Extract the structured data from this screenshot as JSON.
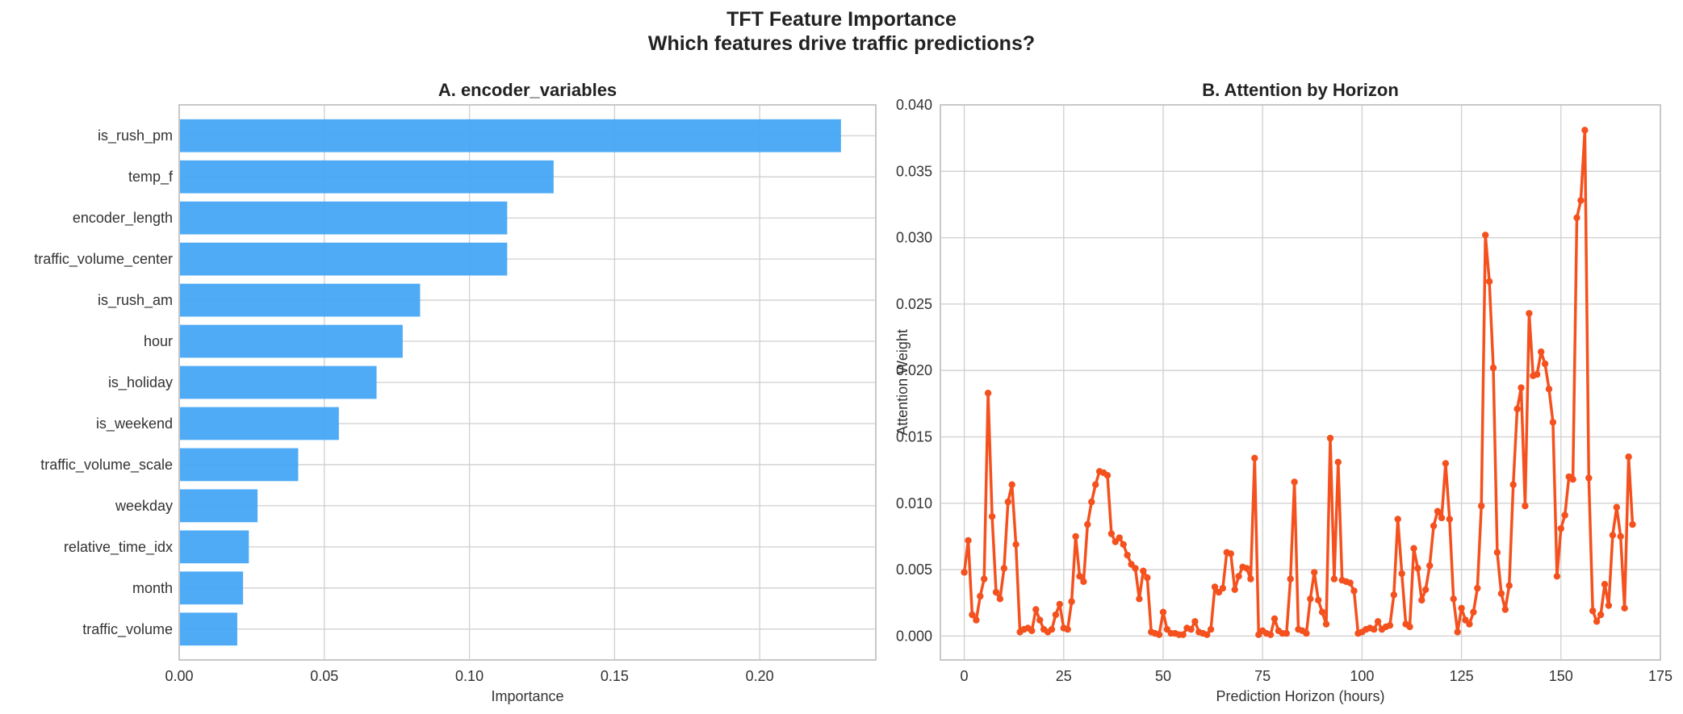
{
  "figure": {
    "title_line1": "TFT Feature Importance",
    "title_line2": "Which features drive traffic predictions?"
  },
  "colors": {
    "bar": "#42A5F5",
    "line": "#F4511E",
    "grid": "#cfcfcf",
    "spine": "#c8c8c8"
  },
  "chart_data": [
    {
      "type": "bar",
      "orientation": "horizontal",
      "title": "A. encoder_variables",
      "xlabel": "Importance",
      "ylabel": "",
      "xlim": [
        0,
        0.24
      ],
      "xticks": [
        "0.00",
        "0.05",
        "0.10",
        "0.15",
        "0.20"
      ],
      "grid": true,
      "categories": [
        "is_rush_pm",
        "temp_f",
        "encoder_length",
        "traffic_volume_center",
        "is_rush_am",
        "hour",
        "is_holiday",
        "is_weekend",
        "traffic_volume_scale",
        "weekday",
        "relative_time_idx",
        "month",
        "traffic_volume"
      ],
      "values": [
        0.228,
        0.129,
        0.113,
        0.113,
        0.083,
        0.077,
        0.068,
        0.055,
        0.041,
        0.027,
        0.024,
        0.022,
        0.02
      ]
    },
    {
      "type": "line",
      "title": "B. Attention by Horizon",
      "xlabel": "Prediction Horizon (hours)",
      "ylabel": "Attention Weight",
      "xlim": [
        -6,
        175
      ],
      "ylim": [
        -0.0018,
        0.04
      ],
      "xticks": [
        "0",
        "25",
        "50",
        "75",
        "100",
        "125",
        "150",
        "175"
      ],
      "yticks": [
        "0.000",
        "0.005",
        "0.010",
        "0.015",
        "0.020",
        "0.025",
        "0.030",
        "0.035",
        "0.040"
      ],
      "grid": true,
      "markers": true,
      "x_start": 0,
      "x_step": 1,
      "values": [
        0.0048,
        0.0072,
        0.0016,
        0.0012,
        0.003,
        0.0043,
        0.0183,
        0.009,
        0.0033,
        0.0028,
        0.0051,
        0.0101,
        0.0114,
        0.0069,
        0.0003,
        0.0005,
        0.0006,
        0.0004,
        0.002,
        0.0012,
        0.0005,
        0.0003,
        0.0005,
        0.0016,
        0.0024,
        0.0006,
        0.0005,
        0.0026,
        0.0075,
        0.0045,
        0.0041,
        0.0084,
        0.0101,
        0.0114,
        0.0124,
        0.0123,
        0.0121,
        0.0077,
        0.0071,
        0.0074,
        0.0069,
        0.0061,
        0.0054,
        0.0051,
        0.0028,
        0.0049,
        0.0044,
        0.0003,
        0.0002,
        0.0001,
        0.0018,
        0.0005,
        0.0002,
        0.0002,
        0.0001,
        0.0001,
        0.0006,
        0.0005,
        0.0011,
        0.0003,
        0.0002,
        0.0001,
        0.0005,
        0.0037,
        0.0033,
        0.0036,
        0.0063,
        0.0062,
        0.0035,
        0.0045,
        0.0052,
        0.0051,
        0.0043,
        0.0134,
        0.0001,
        0.0004,
        0.0002,
        0.0001,
        0.0013,
        0.0004,
        0.0002,
        0.0002,
        0.0043,
        0.0116,
        0.0005,
        0.0004,
        0.0002,
        0.0028,
        0.0048,
        0.0027,
        0.0018,
        0.0009,
        0.0149,
        0.0043,
        0.0131,
        0.0042,
        0.0041,
        0.004,
        0.0034,
        0.0002,
        0.0003,
        0.0005,
        0.0006,
        0.0005,
        0.0011,
        0.0005,
        0.0007,
        0.0008,
        0.0031,
        0.0088,
        0.0047,
        0.0009,
        0.0007,
        0.0066,
        0.0051,
        0.0027,
        0.0035,
        0.0053,
        0.0083,
        0.0094,
        0.0089,
        0.013,
        0.0088,
        0.0028,
        0.0003,
        0.0021,
        0.0012,
        0.0009,
        0.0018,
        0.0036,
        0.0098,
        0.0302,
        0.0267,
        0.0202,
        0.0063,
        0.0032,
        0.002,
        0.0038,
        0.0114,
        0.0171,
        0.0187,
        0.0098,
        0.0243,
        0.0196,
        0.0197,
        0.0214,
        0.0205,
        0.0186,
        0.0161,
        0.0045,
        0.0081,
        0.0091,
        0.012,
        0.0118,
        0.0315,
        0.0328,
        0.0381,
        0.0119,
        0.0019,
        0.0011,
        0.0016,
        0.0039,
        0.0023,
        0.0076,
        0.0097,
        0.0075,
        0.0021,
        0.0135,
        0.0084
      ]
    }
  ]
}
